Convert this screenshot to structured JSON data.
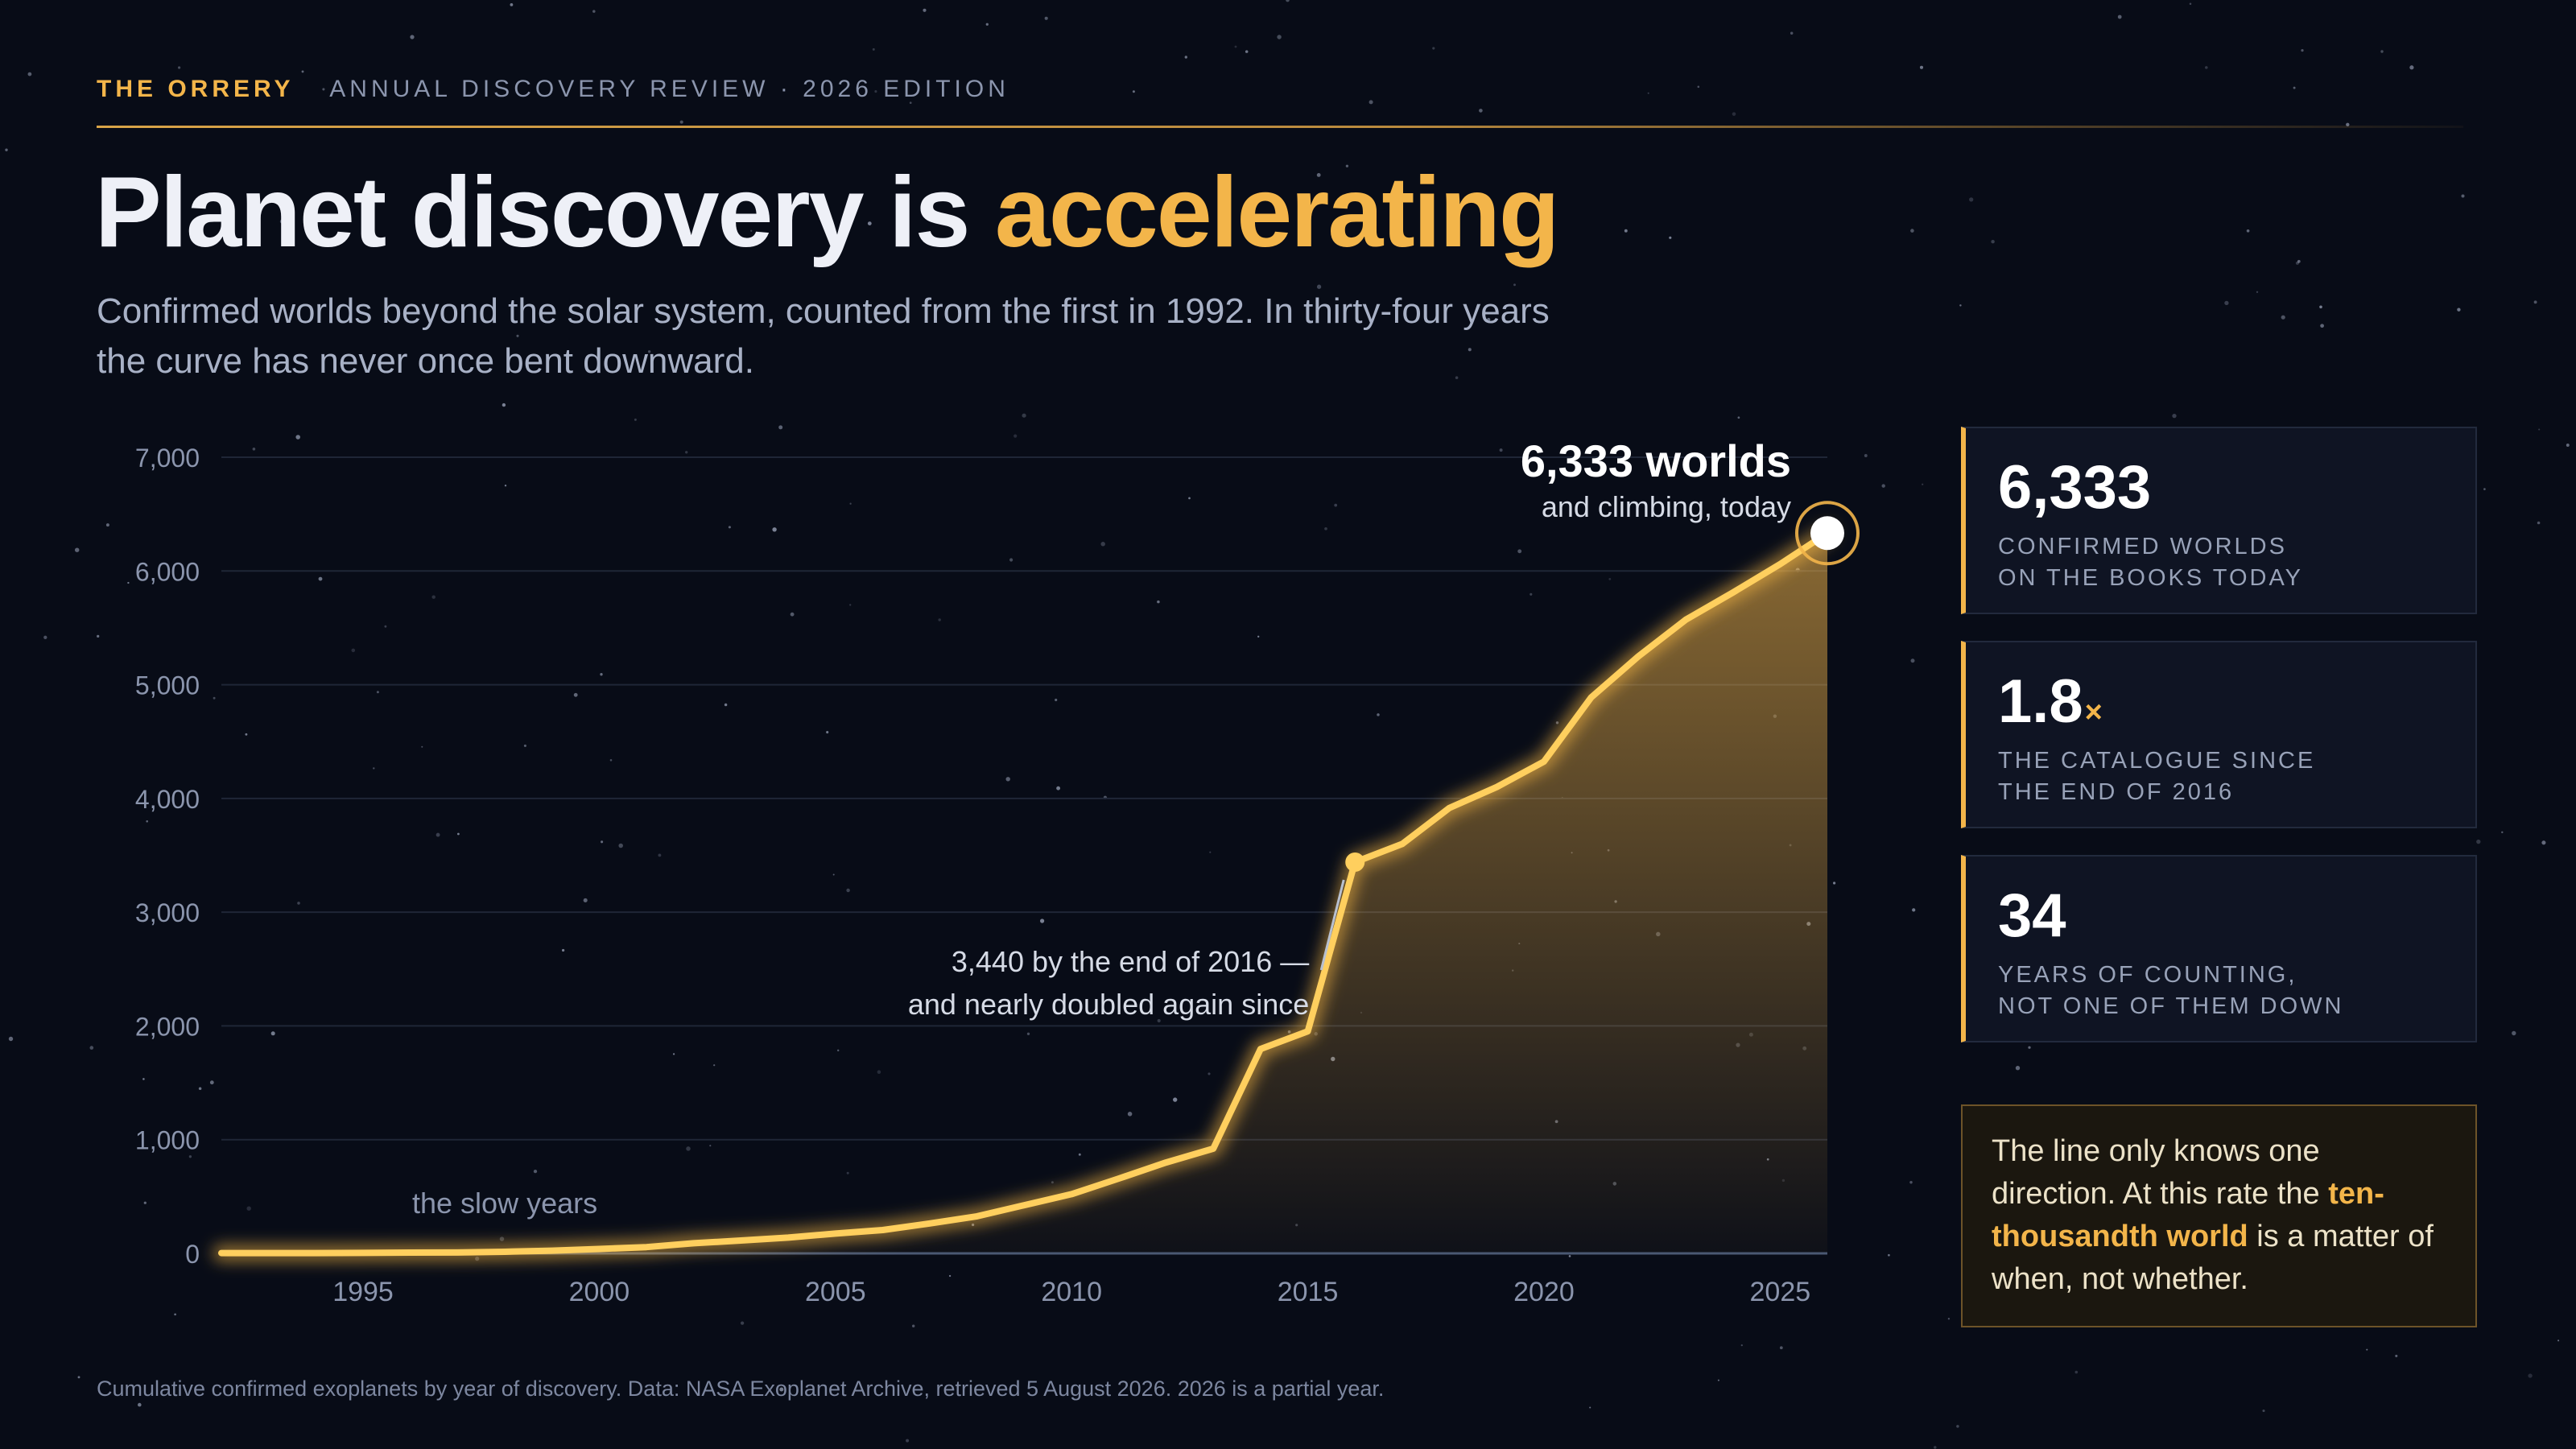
{
  "header": {
    "brand": "THE ORRERY",
    "edition": "ANNUAL DISCOVERY REVIEW · 2026 EDITION"
  },
  "headline": {
    "main": "Planet discovery is ",
    "accent": "accelerating"
  },
  "subtitle": "Confirmed worlds beyond the solar system, counted from the first in 1992. In thirty-four years the curve has never once bent downward.",
  "colors": {
    "background": "#080c17",
    "accent": "#f3b54a",
    "line": "#ffcf5e",
    "grid": "#1f2637",
    "axis_text": "#8b95ad"
  },
  "chart_data": {
    "type": "area",
    "x": [
      1992,
      1993,
      1994,
      1995,
      1996,
      1997,
      1998,
      1999,
      2000,
      2001,
      2002,
      2003,
      2004,
      2005,
      2006,
      2007,
      2008,
      2009,
      2010,
      2011,
      2012,
      2013,
      2014,
      2015,
      2016,
      2017,
      2018,
      2019,
      2020,
      2021,
      2022,
      2023,
      2024,
      2025,
      2026
    ],
    "values": [
      3,
      3,
      3,
      4,
      7,
      8,
      14,
      24,
      39,
      55,
      89,
      113,
      139,
      174,
      205,
      263,
      326,
      424,
      521,
      658,
      799,
      921,
      1797,
      1953,
      3440,
      3600,
      3917,
      4100,
      4324,
      4888,
      5250,
      5571,
      5810,
      6060,
      6333
    ],
    "xlim": [
      1992,
      2026
    ],
    "ylim": [
      0,
      7000
    ],
    "x_ticks": [
      "1995",
      "2000",
      "2005",
      "2010",
      "2015",
      "2020",
      "2025"
    ],
    "y_ticks": [
      "0",
      "1,000",
      "2,000",
      "3,000",
      "4,000",
      "5,000",
      "6,000",
      "7,000"
    ],
    "grid": true,
    "annotations": {
      "end_value": "6,333 worlds",
      "end_sub": "and climbing, today",
      "mid_line1": "3,440 by the end of 2016 —",
      "mid_line2": "and nearly doubled again since",
      "early": "the slow years"
    }
  },
  "stats": [
    {
      "value": "6,333",
      "suffix": "",
      "label_line1": "CONFIRMED WORLDS",
      "label_line2": "ON THE BOOKS TODAY"
    },
    {
      "value": "1.8",
      "suffix": "×",
      "label_line1": "THE CATALOGUE SINCE",
      "label_line2": "THE END OF 2016"
    },
    {
      "value": "34",
      "suffix": "",
      "label_line1": "YEARS OF COUNTING,",
      "label_line2": "NOT ONE OF THEM DOWN"
    }
  ],
  "callout": {
    "before": "The line only knows one direction. At this rate the ",
    "highlight": "ten-thousandth world",
    "after": " is a matter of when, not whether."
  },
  "footnote": "Cumulative confirmed exoplanets by year of discovery. Data: NASA Exoplanet Archive, retrieved 5 August 2026. 2026 is a partial year."
}
